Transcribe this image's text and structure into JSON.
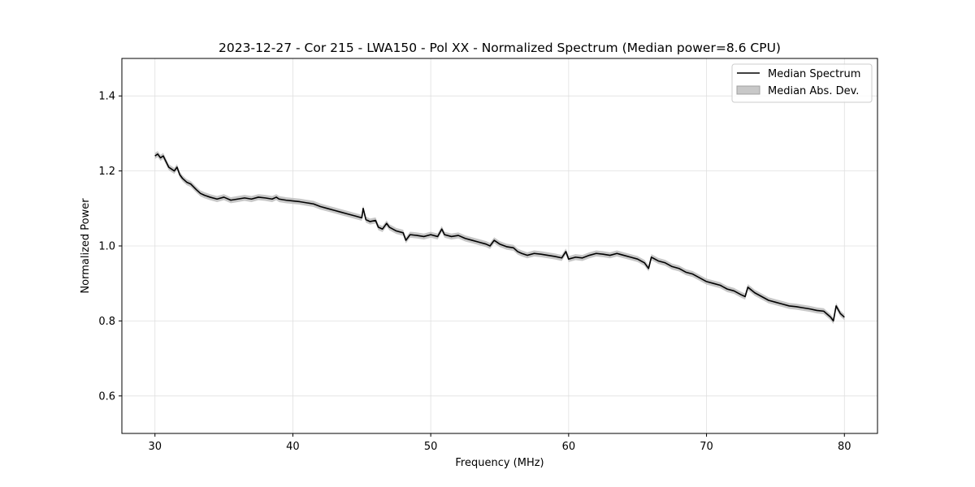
{
  "chart_data": {
    "type": "line",
    "title": "2023-12-27 - Cor 215 - LWA150 - Pol XX - Normalized Spectrum (Median power=8.6 CPU)",
    "xlabel": "Frequency (MHz)",
    "ylabel": "Normalized Power",
    "xlim": [
      27.6,
      82.4
    ],
    "ylim": [
      0.5,
      1.5
    ],
    "xticks": [
      30,
      40,
      50,
      60,
      70,
      80
    ],
    "xtick_labels": [
      "30",
      "40",
      "50",
      "60",
      "70",
      "80"
    ],
    "yticks": [
      0.6,
      0.8,
      1.0,
      1.2,
      1.4
    ],
    "ytick_labels": [
      "0.6",
      "0.8",
      "1.0",
      "1.2",
      "1.4"
    ],
    "grid": true,
    "legend_position": "top-right",
    "legend": [
      "Median Spectrum",
      "Median Abs. Dev."
    ],
    "colors": {
      "line": "#000000",
      "band": "#bdbdbd",
      "grid": "#e0e0e0",
      "axis": "#000000"
    },
    "series": [
      {
        "name": "Median Spectrum",
        "x": [
          30.0,
          30.2,
          30.4,
          30.6,
          30.8,
          31.0,
          31.2,
          31.4,
          31.6,
          31.8,
          32.0,
          32.3,
          32.6,
          33.0,
          33.3,
          33.6,
          34.0,
          34.5,
          35.0,
          35.5,
          36.0,
          36.5,
          37.0,
          37.5,
          38.0,
          38.5,
          38.8,
          39.0,
          39.5,
          40.0,
          40.5,
          41.0,
          41.5,
          42.0,
          42.5,
          43.0,
          43.5,
          44.0,
          44.5,
          45.0,
          45.1,
          45.3,
          45.6,
          46.0,
          46.2,
          46.5,
          46.8,
          47.0,
          47.5,
          48.0,
          48.2,
          48.5,
          49.0,
          49.5,
          50.0,
          50.5,
          50.8,
          51.0,
          51.5,
          52.0,
          52.5,
          53.0,
          53.5,
          54.0,
          54.3,
          54.6,
          55.0,
          55.5,
          56.0,
          56.3,
          56.6,
          57.0,
          57.5,
          58.0,
          58.5,
          59.0,
          59.5,
          59.8,
          60.0,
          60.5,
          61.0,
          61.5,
          62.0,
          62.5,
          63.0,
          63.5,
          64.0,
          64.5,
          65.0,
          65.5,
          65.8,
          66.0,
          66.5,
          67.0,
          67.5,
          68.0,
          68.5,
          69.0,
          69.5,
          70.0,
          70.5,
          71.0,
          71.5,
          72.0,
          72.5,
          72.8,
          73.0,
          73.5,
          74.0,
          74.5,
          75.0,
          75.5,
          76.0,
          76.5,
          77.0,
          77.5,
          78.0,
          78.5,
          79.0,
          79.2,
          79.4,
          79.7,
          80.0
        ],
        "y": [
          1.24,
          1.245,
          1.235,
          1.24,
          1.225,
          1.21,
          1.205,
          1.2,
          1.21,
          1.19,
          1.18,
          1.17,
          1.165,
          1.15,
          1.14,
          1.135,
          1.13,
          1.125,
          1.13,
          1.122,
          1.125,
          1.128,
          1.125,
          1.13,
          1.128,
          1.125,
          1.13,
          1.125,
          1.122,
          1.12,
          1.118,
          1.115,
          1.112,
          1.105,
          1.1,
          1.095,
          1.09,
          1.085,
          1.08,
          1.075,
          1.1,
          1.07,
          1.065,
          1.068,
          1.05,
          1.045,
          1.06,
          1.05,
          1.04,
          1.035,
          1.015,
          1.03,
          1.028,
          1.025,
          1.03,
          1.025,
          1.045,
          1.03,
          1.025,
          1.028,
          1.02,
          1.015,
          1.01,
          1.005,
          1.0,
          1.015,
          1.005,
          0.998,
          0.995,
          0.985,
          0.98,
          0.975,
          0.98,
          0.978,
          0.975,
          0.972,
          0.968,
          0.985,
          0.965,
          0.97,
          0.968,
          0.975,
          0.98,
          0.978,
          0.975,
          0.98,
          0.975,
          0.97,
          0.965,
          0.955,
          0.94,
          0.97,
          0.96,
          0.955,
          0.945,
          0.94,
          0.93,
          0.925,
          0.915,
          0.905,
          0.9,
          0.895,
          0.885,
          0.88,
          0.87,
          0.865,
          0.89,
          0.875,
          0.865,
          0.855,
          0.85,
          0.845,
          0.84,
          0.838,
          0.835,
          0.832,
          0.828,
          0.826,
          0.81,
          0.8,
          0.84,
          0.82,
          0.81
        ]
      },
      {
        "name": "Median Abs. Dev.",
        "type": "band",
        "mad": 0.008
      }
    ]
  }
}
